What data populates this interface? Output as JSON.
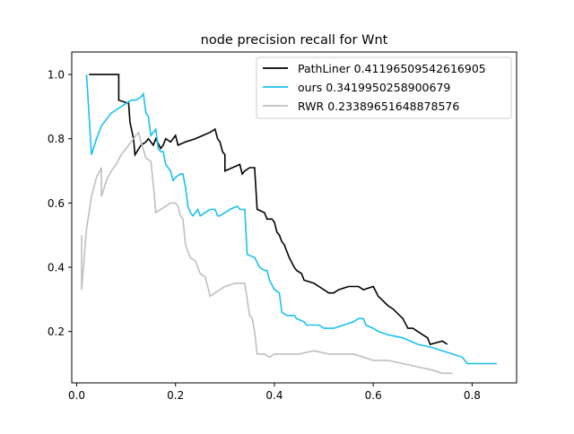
{
  "chart_data": {
    "type": "line",
    "title": "node precision recall for Wnt",
    "xlabel": "",
    "ylabel": "",
    "xlim": [
      -0.01,
      0.89
    ],
    "ylim": [
      0.04,
      1.07
    ],
    "grid": false,
    "legend_position": "top-right",
    "x_ticks": [
      0.0,
      0.2,
      0.4,
      0.6,
      0.8
    ],
    "x_tick_labels": [
      "0.0",
      "0.2",
      "0.4",
      "0.6",
      "0.8"
    ],
    "y_ticks": [
      0.2,
      0.4,
      0.6,
      0.8,
      1.0
    ],
    "y_tick_labels": [
      "0.2",
      "0.4",
      "0.6",
      "0.8",
      "1.0"
    ],
    "series": [
      {
        "name": "PathLiner 0.41196509542616905",
        "color": "#000000",
        "points": [
          [
            0.025,
            1.0
          ],
          [
            0.085,
            1.0
          ],
          [
            0.085,
            0.92
          ],
          [
            0.105,
            0.91
          ],
          [
            0.108,
            0.85
          ],
          [
            0.115,
            0.8
          ],
          [
            0.118,
            0.75
          ],
          [
            0.13,
            0.78
          ],
          [
            0.14,
            0.79
          ],
          [
            0.145,
            0.8
          ],
          [
            0.155,
            0.78
          ],
          [
            0.16,
            0.8
          ],
          [
            0.17,
            0.77
          ],
          [
            0.175,
            0.78
          ],
          [
            0.18,
            0.8
          ],
          [
            0.19,
            0.79
          ],
          [
            0.2,
            0.81
          ],
          [
            0.205,
            0.78
          ],
          [
            0.22,
            0.79
          ],
          [
            0.24,
            0.8
          ],
          [
            0.255,
            0.81
          ],
          [
            0.27,
            0.82
          ],
          [
            0.28,
            0.83
          ],
          [
            0.285,
            0.8
          ],
          [
            0.29,
            0.79
          ],
          [
            0.295,
            0.76
          ],
          [
            0.3,
            0.75
          ],
          [
            0.3,
            0.7
          ],
          [
            0.315,
            0.71
          ],
          [
            0.33,
            0.72
          ],
          [
            0.335,
            0.69
          ],
          [
            0.34,
            0.7
          ],
          [
            0.35,
            0.71
          ],
          [
            0.36,
            0.71
          ],
          [
            0.365,
            0.58
          ],
          [
            0.38,
            0.57
          ],
          [
            0.385,
            0.55
          ],
          [
            0.395,
            0.55
          ],
          [
            0.4,
            0.54
          ],
          [
            0.405,
            0.51
          ],
          [
            0.41,
            0.5
          ],
          [
            0.415,
            0.48
          ],
          [
            0.42,
            0.47
          ],
          [
            0.425,
            0.45
          ],
          [
            0.43,
            0.43
          ],
          [
            0.44,
            0.4
          ],
          [
            0.445,
            0.39
          ],
          [
            0.455,
            0.38
          ],
          [
            0.46,
            0.36
          ],
          [
            0.48,
            0.35
          ],
          [
            0.49,
            0.34
          ],
          [
            0.5,
            0.33
          ],
          [
            0.51,
            0.32
          ],
          [
            0.52,
            0.32
          ],
          [
            0.53,
            0.33
          ],
          [
            0.55,
            0.34
          ],
          [
            0.57,
            0.34
          ],
          [
            0.58,
            0.33
          ],
          [
            0.6,
            0.34
          ],
          [
            0.61,
            0.31
          ],
          [
            0.63,
            0.28
          ],
          [
            0.64,
            0.27
          ],
          [
            0.66,
            0.24
          ],
          [
            0.67,
            0.21
          ],
          [
            0.68,
            0.21
          ],
          [
            0.69,
            0.2
          ],
          [
            0.7,
            0.19
          ],
          [
            0.71,
            0.18
          ],
          [
            0.715,
            0.16
          ],
          [
            0.74,
            0.17
          ],
          [
            0.75,
            0.16
          ]
        ]
      },
      {
        "name": "ours 0.3419950258900679",
        "color": "#1ac0f0",
        "points": [
          [
            0.02,
            1.0
          ],
          [
            0.03,
            0.75
          ],
          [
            0.04,
            0.8
          ],
          [
            0.05,
            0.84
          ],
          [
            0.06,
            0.86
          ],
          [
            0.07,
            0.88
          ],
          [
            0.08,
            0.89
          ],
          [
            0.09,
            0.9
          ],
          [
            0.1,
            0.91
          ],
          [
            0.11,
            0.92
          ],
          [
            0.12,
            0.92
          ],
          [
            0.13,
            0.93
          ],
          [
            0.135,
            0.94
          ],
          [
            0.14,
            0.88
          ],
          [
            0.145,
            0.87
          ],
          [
            0.15,
            0.81
          ],
          [
            0.155,
            0.82
          ],
          [
            0.16,
            0.83
          ],
          [
            0.165,
            0.77
          ],
          [
            0.17,
            0.76
          ],
          [
            0.175,
            0.76
          ],
          [
            0.18,
            0.72
          ],
          [
            0.19,
            0.7
          ],
          [
            0.195,
            0.67
          ],
          [
            0.2,
            0.68
          ],
          [
            0.21,
            0.69
          ],
          [
            0.215,
            0.69
          ],
          [
            0.22,
            0.65
          ],
          [
            0.225,
            0.59
          ],
          [
            0.23,
            0.57
          ],
          [
            0.235,
            0.56
          ],
          [
            0.24,
            0.57
          ],
          [
            0.245,
            0.58
          ],
          [
            0.25,
            0.56
          ],
          [
            0.26,
            0.57
          ],
          [
            0.27,
            0.58
          ],
          [
            0.28,
            0.58
          ],
          [
            0.285,
            0.56
          ],
          [
            0.29,
            0.56
          ],
          [
            0.3,
            0.57
          ],
          [
            0.31,
            0.58
          ],
          [
            0.325,
            0.59
          ],
          [
            0.33,
            0.58
          ],
          [
            0.34,
            0.58
          ],
          [
            0.345,
            0.44
          ],
          [
            0.36,
            0.43
          ],
          [
            0.37,
            0.4
          ],
          [
            0.38,
            0.39
          ],
          [
            0.385,
            0.39
          ],
          [
            0.39,
            0.36
          ],
          [
            0.4,
            0.33
          ],
          [
            0.41,
            0.32
          ],
          [
            0.415,
            0.26
          ],
          [
            0.425,
            0.25
          ],
          [
            0.44,
            0.25
          ],
          [
            0.445,
            0.24
          ],
          [
            0.46,
            0.23
          ],
          [
            0.465,
            0.22
          ],
          [
            0.48,
            0.22
          ],
          [
            0.49,
            0.22
          ],
          [
            0.5,
            0.21
          ],
          [
            0.52,
            0.21
          ],
          [
            0.54,
            0.22
          ],
          [
            0.56,
            0.23
          ],
          [
            0.57,
            0.24
          ],
          [
            0.58,
            0.24
          ],
          [
            0.585,
            0.22
          ],
          [
            0.6,
            0.21
          ],
          [
            0.61,
            0.2
          ],
          [
            0.63,
            0.19
          ],
          [
            0.66,
            0.18
          ],
          [
            0.69,
            0.16
          ],
          [
            0.72,
            0.15
          ],
          [
            0.74,
            0.14
          ],
          [
            0.76,
            0.13
          ],
          [
            0.78,
            0.12
          ],
          [
            0.79,
            0.1
          ],
          [
            0.82,
            0.1
          ],
          [
            0.85,
            0.1
          ]
        ]
      },
      {
        "name": "RWR 0.23389651648878576",
        "color": "#bfbfbf",
        "points": [
          [
            0.01,
            0.5
          ],
          [
            0.01,
            0.33
          ],
          [
            0.02,
            0.52
          ],
          [
            0.03,
            0.62
          ],
          [
            0.04,
            0.68
          ],
          [
            0.05,
            0.71
          ],
          [
            0.05,
            0.62
          ],
          [
            0.06,
            0.67
          ],
          [
            0.07,
            0.7
          ],
          [
            0.08,
            0.72
          ],
          [
            0.09,
            0.75
          ],
          [
            0.1,
            0.77
          ],
          [
            0.11,
            0.79
          ],
          [
            0.12,
            0.81
          ],
          [
            0.125,
            0.82
          ],
          [
            0.13,
            0.79
          ],
          [
            0.14,
            0.74
          ],
          [
            0.15,
            0.73
          ],
          [
            0.155,
            0.66
          ],
          [
            0.16,
            0.57
          ],
          [
            0.17,
            0.58
          ],
          [
            0.18,
            0.59
          ],
          [
            0.19,
            0.6
          ],
          [
            0.2,
            0.6
          ],
          [
            0.205,
            0.59
          ],
          [
            0.21,
            0.56
          ],
          [
            0.215,
            0.55
          ],
          [
            0.22,
            0.47
          ],
          [
            0.23,
            0.43
          ],
          [
            0.24,
            0.42
          ],
          [
            0.25,
            0.38
          ],
          [
            0.26,
            0.37
          ],
          [
            0.27,
            0.31
          ],
          [
            0.28,
            0.32
          ],
          [
            0.29,
            0.33
          ],
          [
            0.3,
            0.34
          ],
          [
            0.32,
            0.35
          ],
          [
            0.33,
            0.35
          ],
          [
            0.34,
            0.35
          ],
          [
            0.345,
            0.3
          ],
          [
            0.35,
            0.25
          ],
          [
            0.355,
            0.24
          ],
          [
            0.36,
            0.2
          ],
          [
            0.365,
            0.13
          ],
          [
            0.38,
            0.13
          ],
          [
            0.39,
            0.12
          ],
          [
            0.4,
            0.13
          ],
          [
            0.42,
            0.13
          ],
          [
            0.45,
            0.13
          ],
          [
            0.48,
            0.14
          ],
          [
            0.51,
            0.13
          ],
          [
            0.53,
            0.13
          ],
          [
            0.56,
            0.13
          ],
          [
            0.58,
            0.12
          ],
          [
            0.6,
            0.11
          ],
          [
            0.63,
            0.11
          ],
          [
            0.66,
            0.1
          ],
          [
            0.69,
            0.09
          ],
          [
            0.72,
            0.08
          ],
          [
            0.74,
            0.07
          ],
          [
            0.76,
            0.07
          ]
        ]
      }
    ]
  }
}
